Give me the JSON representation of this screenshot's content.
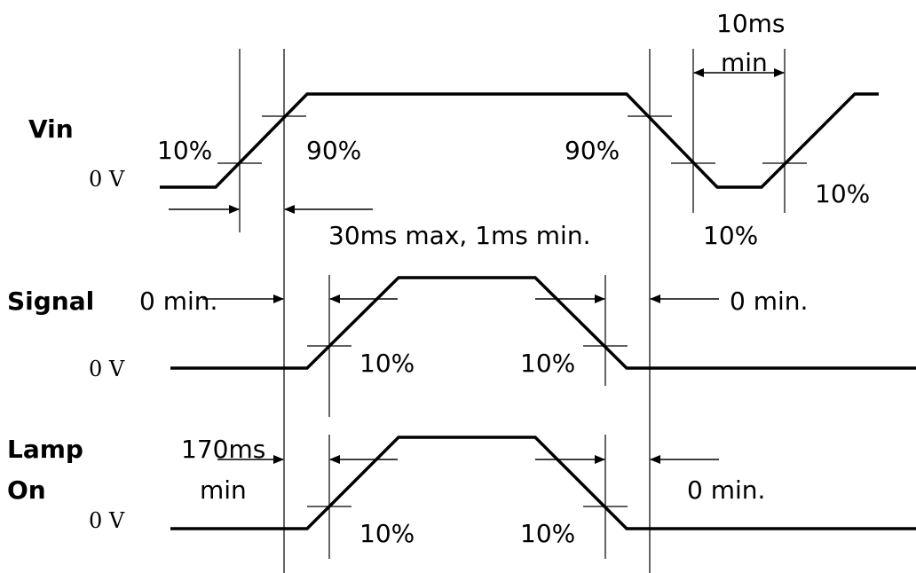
{
  "signals": {
    "vin": "Vin",
    "signal": "Signal",
    "lamp_line1": "Lamp",
    "lamp_line2": "On"
  },
  "zero_volt": {
    "vin": "0 V",
    "signal": "0 V",
    "lamp": "0 V"
  },
  "vin": {
    "pct_rise_10": "10%",
    "pct_rise_90": "90%",
    "pct_fall_90": "90%",
    "pct_fall_10": "10%",
    "pct_rise2_10": "10%",
    "timing_rise": "30ms max, 1ms min.",
    "min_low_line1": "10ms",
    "min_low_line2": "min"
  },
  "signal": {
    "pct_rise_10": "10%",
    "pct_fall_10": "10%",
    "delay_before": "0 min.",
    "delay_after": "0 min."
  },
  "lamp": {
    "pct_rise_10": "10%",
    "pct_fall_10": "10%",
    "delay_before_line1": "170ms",
    "delay_before_line2": "min",
    "delay_after": "0 min."
  }
}
